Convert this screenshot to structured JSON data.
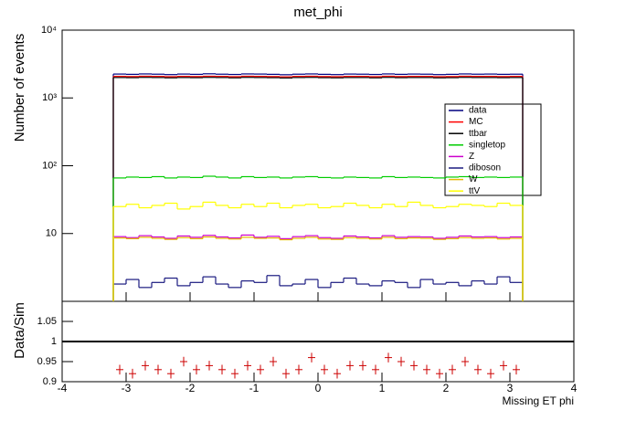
{
  "chart_data": [
    {
      "type": "histogram",
      "title": "met_phi",
      "ylabel": "Number of events",
      "log_y": true,
      "xlim": [
        -4,
        4
      ],
      "ylim": [
        1,
        10000
      ],
      "yticks": [
        {
          "value": 10,
          "label": "10"
        },
        {
          "value": 100,
          "label": "10²"
        },
        {
          "value": 1000,
          "label": "10³"
        },
        {
          "value": 10000,
          "label": "10⁴"
        }
      ],
      "bins": [
        -3.2,
        -3.0,
        -2.8,
        -2.6,
        -2.4,
        -2.2,
        -2.0,
        -1.8,
        -1.6,
        -1.4,
        -1.2,
        -1.0,
        -0.8,
        -0.6,
        -0.4,
        -0.2,
        0,
        0.2,
        0.4,
        0.6,
        0.8,
        1.0,
        1.2,
        1.4,
        1.6,
        1.8,
        2.0,
        2.2,
        2.4,
        2.6,
        2.8,
        3.0,
        3.2
      ],
      "legend": "upper right",
      "series": [
        {
          "name": "data",
          "color": "#000080",
          "values": [
            2250,
            2230,
            2260,
            2240,
            2210,
            2250,
            2230,
            2270,
            2240,
            2220,
            2260,
            2250,
            2230,
            2200,
            2240,
            2260,
            2230,
            2210,
            2250,
            2240,
            2220,
            2260,
            2230,
            2250,
            2240,
            2210,
            2230,
            2260,
            2240,
            2250,
            2230,
            2240
          ]
        },
        {
          "name": "MC",
          "color": "#ff0000",
          "values": [
            2080,
            2070,
            2090,
            2080,
            2060,
            2080,
            2070,
            2090,
            2080,
            2060,
            2090,
            2080,
            2070,
            2050,
            2080,
            2090,
            2070,
            2060,
            2080,
            2080,
            2060,
            2090,
            2070,
            2080,
            2080,
            2060,
            2070,
            2090,
            2080,
            2080,
            2070,
            2080
          ]
        },
        {
          "name": "ttbar",
          "color": "#000000",
          "values": [
            2000,
            1990,
            2010,
            2000,
            1980,
            2000,
            1990,
            2010,
            2000,
            1980,
            2010,
            2000,
            1990,
            1970,
            2000,
            2010,
            1990,
            1980,
            2000,
            2000,
            1980,
            2010,
            1990,
            2000,
            2000,
            1980,
            1990,
            2010,
            2000,
            2000,
            1990,
            2000
          ]
        },
        {
          "name": "singletop",
          "color": "#00cc00",
          "values": [
            66,
            68,
            67,
            69,
            66,
            68,
            67,
            70,
            68,
            66,
            69,
            67,
            68,
            66,
            68,
            69,
            67,
            66,
            68,
            67,
            66,
            69,
            67,
            68,
            67,
            66,
            68,
            69,
            67,
            68,
            67,
            68
          ]
        },
        {
          "name": "Z",
          "color": "#cc00cc",
          "values": [
            9.0,
            8.7,
            9.3,
            8.9,
            8.5,
            9.2,
            8.8,
            9.4,
            8.9,
            8.6,
            9.5,
            8.8,
            9.1,
            8.4,
            9.0,
            9.3,
            8.7,
            8.5,
            9.2,
            8.9,
            8.6,
            9.3,
            8.8,
            9.0,
            8.9,
            8.5,
            8.8,
            9.2,
            8.9,
            9.0,
            8.7,
            8.9
          ]
        },
        {
          "name": "diboson",
          "color": "#1a1a80",
          "values": [
            1.8,
            2.1,
            1.6,
            1.9,
            2.2,
            1.7,
            1.9,
            2.3,
            1.8,
            1.6,
            2.0,
            1.9,
            2.4,
            1.7,
            1.8,
            2.1,
            1.6,
            1.9,
            2.2,
            1.8,
            1.7,
            2.0,
            1.9,
            1.6,
            2.1,
            1.8,
            1.9,
            1.7,
            2.0,
            1.8,
            2.3,
            1.9
          ]
        },
        {
          "name": "W",
          "color": "#e6b800",
          "values": [
            8.6,
            8.4,
            8.8,
            8.5,
            8.2,
            8.7,
            8.4,
            8.9,
            8.5,
            8.3,
            8.8,
            8.5,
            8.6,
            8.1,
            8.5,
            8.8,
            8.3,
            8.2,
            8.7,
            8.5,
            8.3,
            8.8,
            8.4,
            8.6,
            8.5,
            8.2,
            8.4,
            8.7,
            8.5,
            8.6,
            8.3,
            8.5
          ]
        },
        {
          "name": "ttV",
          "color": "#ffff00",
          "values": [
            25,
            27,
            24,
            26,
            28,
            23,
            25,
            29,
            26,
            24,
            27,
            25,
            28,
            24,
            26,
            27,
            24,
            25,
            28,
            26,
            24,
            27,
            25,
            29,
            26,
            24,
            25,
            27,
            26,
            25,
            28,
            26
          ]
        }
      ]
    },
    {
      "type": "errorbar",
      "ylabel": "Data/Sim",
      "xlabel": "Missing ET phi",
      "color": "#cc0000",
      "xlim": [
        -4,
        4
      ],
      "xticks": [
        -4,
        -3,
        -2,
        -1,
        0,
        1,
        2,
        3,
        4
      ],
      "ylim": [
        0.9,
        1.1
      ],
      "yticks": [
        0.9,
        0.95,
        1,
        1.05
      ],
      "reference": 1,
      "values": [
        0.93,
        0.92,
        0.94,
        0.93,
        0.92,
        0.95,
        0.93,
        0.94,
        0.93,
        0.92,
        0.94,
        0.93,
        0.95,
        0.92,
        0.93,
        0.96,
        0.93,
        0.92,
        0.94,
        0.94,
        0.93,
        0.96,
        0.95,
        0.94,
        0.93,
        0.92,
        0.93,
        0.95,
        0.93,
        0.92,
        0.94,
        0.93
      ],
      "errors": [
        0.012,
        0.012,
        0.012,
        0.012,
        0.012,
        0.012,
        0.012,
        0.012,
        0.012,
        0.012,
        0.012,
        0.012,
        0.012,
        0.012,
        0.012,
        0.012,
        0.012,
        0.012,
        0.012,
        0.012,
        0.012,
        0.012,
        0.012,
        0.012,
        0.012,
        0.012,
        0.012,
        0.012,
        0.012,
        0.012,
        0.012,
        0.012
      ]
    }
  ]
}
